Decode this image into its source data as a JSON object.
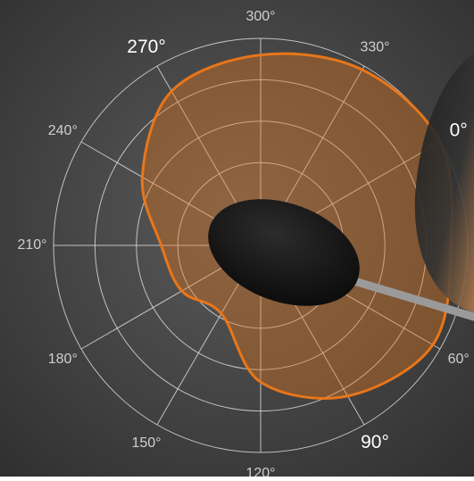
{
  "chart_data": {
    "type": "polar",
    "theta": [
      0,
      30,
      60,
      90,
      120,
      150,
      180,
      210,
      240,
      270,
      300,
      330
    ],
    "series": [
      {
        "color": "#e8761a",
        "values": [
          5.0,
          4.6,
          4.8,
          4.2,
          3.3,
          1.9,
          2.2,
          2.4,
          3.3,
          4.3,
          4.6,
          4.9
        ]
      }
    ],
    "rlim": [
      0,
      5
    ],
    "rticks": [
      1,
      2,
      3,
      4,
      5
    ],
    "thetaticks": [
      {
        "value": 0,
        "label": "0°"
      },
      {
        "value": 60,
        "label": "60°"
      },
      {
        "value": 90,
        "label": "90°"
      },
      {
        "value": 120,
        "label": "120°"
      },
      {
        "value": 150,
        "label": "150°"
      },
      {
        "value": 180,
        "label": "180°"
      },
      {
        "value": 210,
        "label": "210°"
      },
      {
        "value": 240,
        "label": "240°"
      },
      {
        "value": 270,
        "label": "270°"
      },
      {
        "value": 300,
        "label": "300°"
      },
      {
        "value": 330,
        "label": "330°"
      }
    ],
    "grid": true
  }
}
